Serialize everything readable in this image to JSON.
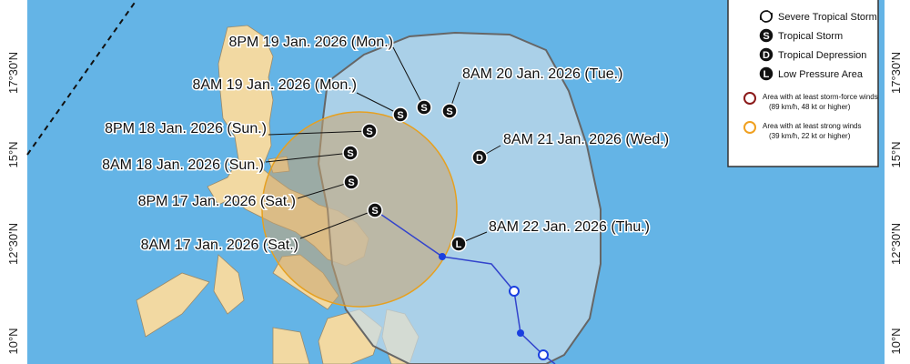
{
  "map": {
    "latitude_labels_left": [
      "17°30'N",
      "15°N",
      "12°30'N",
      "10°N"
    ],
    "latitude_labels_right": [
      "17°30'N",
      "15°N",
      "12°30'N",
      "10°N"
    ],
    "forecast_points": [
      {
        "label": "8AM 17 Jan. 2026 (Sat.)",
        "symbol": "S"
      },
      {
        "label": "8PM 17 Jan. 2026 (Sat.)",
        "symbol": "S"
      },
      {
        "label": "8AM 18 Jan. 2026 (Sun.)",
        "symbol": "S"
      },
      {
        "label": "8PM 18 Jan. 2026 (Sun.)",
        "symbol": "S"
      },
      {
        "label": "8AM 19 Jan. 2026 (Mon.)",
        "symbol": "S"
      },
      {
        "label": "8PM 19 Jan. 2026 (Mon.)",
        "symbol": "S"
      },
      {
        "label": "8AM 20 Jan. 2026 (Tue.)",
        "symbol": "S"
      },
      {
        "label": "8AM 21 Jan. 2026 (Wed.)",
        "symbol": "D"
      },
      {
        "label": "8AM 22 Jan. 2026 (Thu.)",
        "symbol": "L"
      }
    ],
    "legend": {
      "categories": [
        {
          "label": "Severe Tropical Storm"
        },
        {
          "symbol": "S",
          "label": "Tropical Storm"
        },
        {
          "symbol": "D",
          "label": "Tropical Depression"
        },
        {
          "symbol": "L",
          "label": "Low Pressure Area"
        }
      ],
      "areas": [
        {
          "label": "Area with at least storm-force winds",
          "detail": "(89 km/h, 48 kt or higher)"
        },
        {
          "label": "Area with at least strong winds",
          "detail": "(39 km/h, 22 kt or higher)"
        }
      ]
    }
  }
}
